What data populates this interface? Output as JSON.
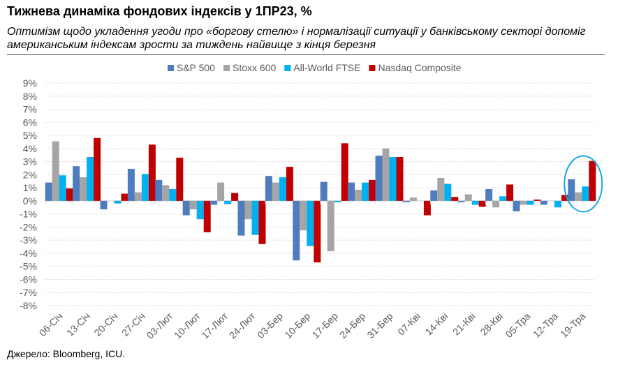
{
  "title": "Тижнева динаміка фондових індексів у 1ПР23, %",
  "subtitle": "Оптимізм щодо укладення угоди про «боргову стелю» і нормалізації ситуації у банківському секторі допоміг американським індексам зрости за тиждень найвище з кінця березня",
  "source": "Джерело: Bloomberg, ICU.",
  "chart_data": {
    "type": "bar",
    "ylim": [
      -8,
      9
    ],
    "ytick_step": 1,
    "ytick_format": "%",
    "grid": true,
    "legend_position": "top",
    "highlight": "19-Тра",
    "highlight_color": "#1AA7E0",
    "categories": [
      "06-Січ",
      "13-Січ",
      "20-Січ",
      "27-Січ",
      "03-Лют",
      "10-Лют",
      "17-Лют",
      "24-Лют",
      "03-Бер",
      "10-Бер",
      "17-Бер",
      "24-Бер",
      "31-Бер",
      "07-Кві",
      "14-Кві",
      "21-Кві",
      "28-Кві",
      "05-Тра",
      "12-Тра",
      "19-Тра"
    ],
    "series": [
      {
        "name": "S&P 500",
        "color": "#4F7CBE",
        "values": [
          1.4,
          2.65,
          -0.65,
          2.45,
          1.6,
          -1.1,
          -0.3,
          -2.65,
          1.9,
          -4.55,
          1.45,
          1.4,
          3.45,
          -0.1,
          0.8,
          -0.1,
          0.9,
          -0.8,
          -0.3,
          1.65
        ]
      },
      {
        "name": "Stoxx 600",
        "color": "#A5A5A5",
        "values": [
          4.55,
          1.8,
          0,
          0.65,
          1.2,
          -0.65,
          1.4,
          -1.4,
          1.4,
          -2.25,
          -3.85,
          0.85,
          4.0,
          0.25,
          1.75,
          0.5,
          -0.5,
          -0.3,
          0,
          0.65
        ]
      },
      {
        "name": "All-World FTSE",
        "color": "#00B0F0",
        "values": [
          1.95,
          3.35,
          -0.2,
          2.05,
          0.9,
          -1.4,
          -0.25,
          -2.6,
          1.8,
          -3.45,
          -0.1,
          1.4,
          3.35,
          0,
          1.3,
          -0.3,
          0.35,
          -0.3,
          -0.5,
          1.1
        ]
      },
      {
        "name": "Nasdaq Composite",
        "color": "#C00000",
        "values": [
          0.95,
          4.8,
          0.55,
          4.3,
          3.3,
          -2.4,
          0.6,
          -3.3,
          2.6,
          -4.7,
          4.4,
          1.6,
          3.35,
          -1.1,
          0.3,
          -0.45,
          1.25,
          0.1,
          0.45,
          3.05
        ]
      }
    ]
  }
}
